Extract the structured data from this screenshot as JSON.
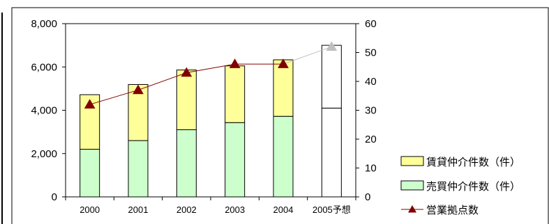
{
  "chart_data": {
    "type": "bar",
    "stacked": true,
    "categories": [
      "2000",
      "2001",
      "2002",
      "2003",
      "2004",
      "2005予想"
    ],
    "series": [
      {
        "name": "売買仲介件数（件）",
        "kind": "bar",
        "axis": "left",
        "color": "#ccffcc",
        "values": [
          2200,
          2600,
          3100,
          3430,
          3720,
          4100
        ]
      },
      {
        "name": "賃貸仲介件数（件）",
        "kind": "bar",
        "axis": "left",
        "color": "#ffff99",
        "values": [
          2520,
          2590,
          2760,
          2620,
          2610,
          2900
        ]
      },
      {
        "name": "営業拠点数",
        "kind": "line",
        "axis": "right",
        "color": "#800000",
        "values": [
          32,
          37,
          43,
          46,
          46,
          52
        ]
      }
    ],
    "forecast_index": 5,
    "forecast_style": {
      "bar_fill": "#ffffff",
      "marker_color": "#c0c0c0",
      "line_color": "#c0c0c0"
    },
    "y_left": {
      "ylim": [
        0,
        8000
      ],
      "ticks": [
        "0",
        "2,000",
        "4,000",
        "6,000",
        "8,000"
      ],
      "tick_values": [
        0,
        2000,
        4000,
        6000,
        8000
      ]
    },
    "y_right": {
      "ylim": [
        0,
        60
      ],
      "ticks": [
        "0",
        "10",
        "20",
        "30",
        "40",
        "50",
        "60"
      ],
      "tick_values": [
        0,
        10,
        20,
        30,
        40,
        50,
        60
      ]
    },
    "grid": false,
    "legend_position": "bottom-right",
    "legend": [
      {
        "label": "賃貸仲介件数（件）",
        "kind": "box",
        "color": "#ffff99"
      },
      {
        "label": "売買仲介件数（件）",
        "kind": "box",
        "color": "#ccffcc"
      },
      {
        "label": "営業拠点数",
        "kind": "line",
        "color": "#800000"
      }
    ]
  }
}
